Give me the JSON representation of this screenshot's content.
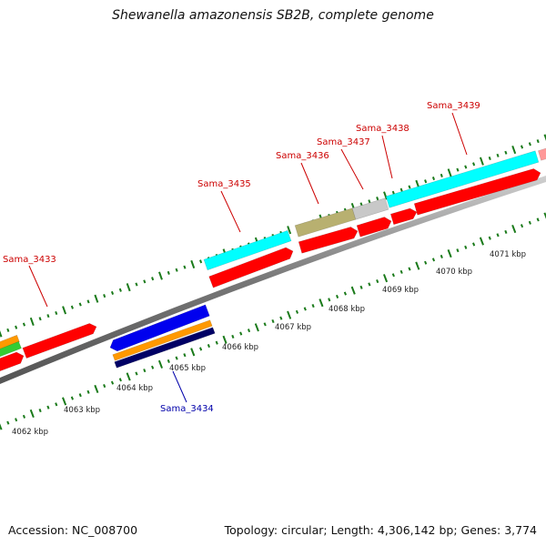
{
  "title": "Shewanella amazonensis SB2B, complete genome",
  "footer": {
    "accession": "Accession: NC_008700",
    "summary": "Topology: circular; Length: 4,306,142 bp; Genes: 3,774"
  },
  "scale_labels": [
    "4062 kbp",
    "4063 kbp",
    "4064 kbp",
    "4065 kbp",
    "4066 kbp",
    "4067 kbp",
    "4068 kbp",
    "4069 kbp",
    "4070 kbp",
    "4071 kbp"
  ],
  "gene_labels": [
    {
      "name": "Sama_3433",
      "strand": "forward"
    },
    {
      "name": "Sama_3434",
      "strand": "reverse"
    },
    {
      "name": "Sama_3435",
      "strand": "forward"
    },
    {
      "name": "Sama_3436",
      "strand": "forward"
    },
    {
      "name": "Sama_3437",
      "strand": "forward"
    },
    {
      "name": "Sama_3438",
      "strand": "forward"
    },
    {
      "name": "Sama_3439",
      "strand": "forward"
    }
  ],
  "colors": {
    "cds": "#ff0000",
    "forward_label": "#cc0000",
    "reverse_label": "#0000aa",
    "backbone": "#888888",
    "tick": "#1a7a1a",
    "cyan": "#00ffff",
    "olive": "#b8b070",
    "gray": "#c8c8c8",
    "blue": "#0000ee",
    "orange": "#ff9900",
    "navy": "#000066",
    "green": "#33cc33",
    "pink": "#ff9999"
  }
}
